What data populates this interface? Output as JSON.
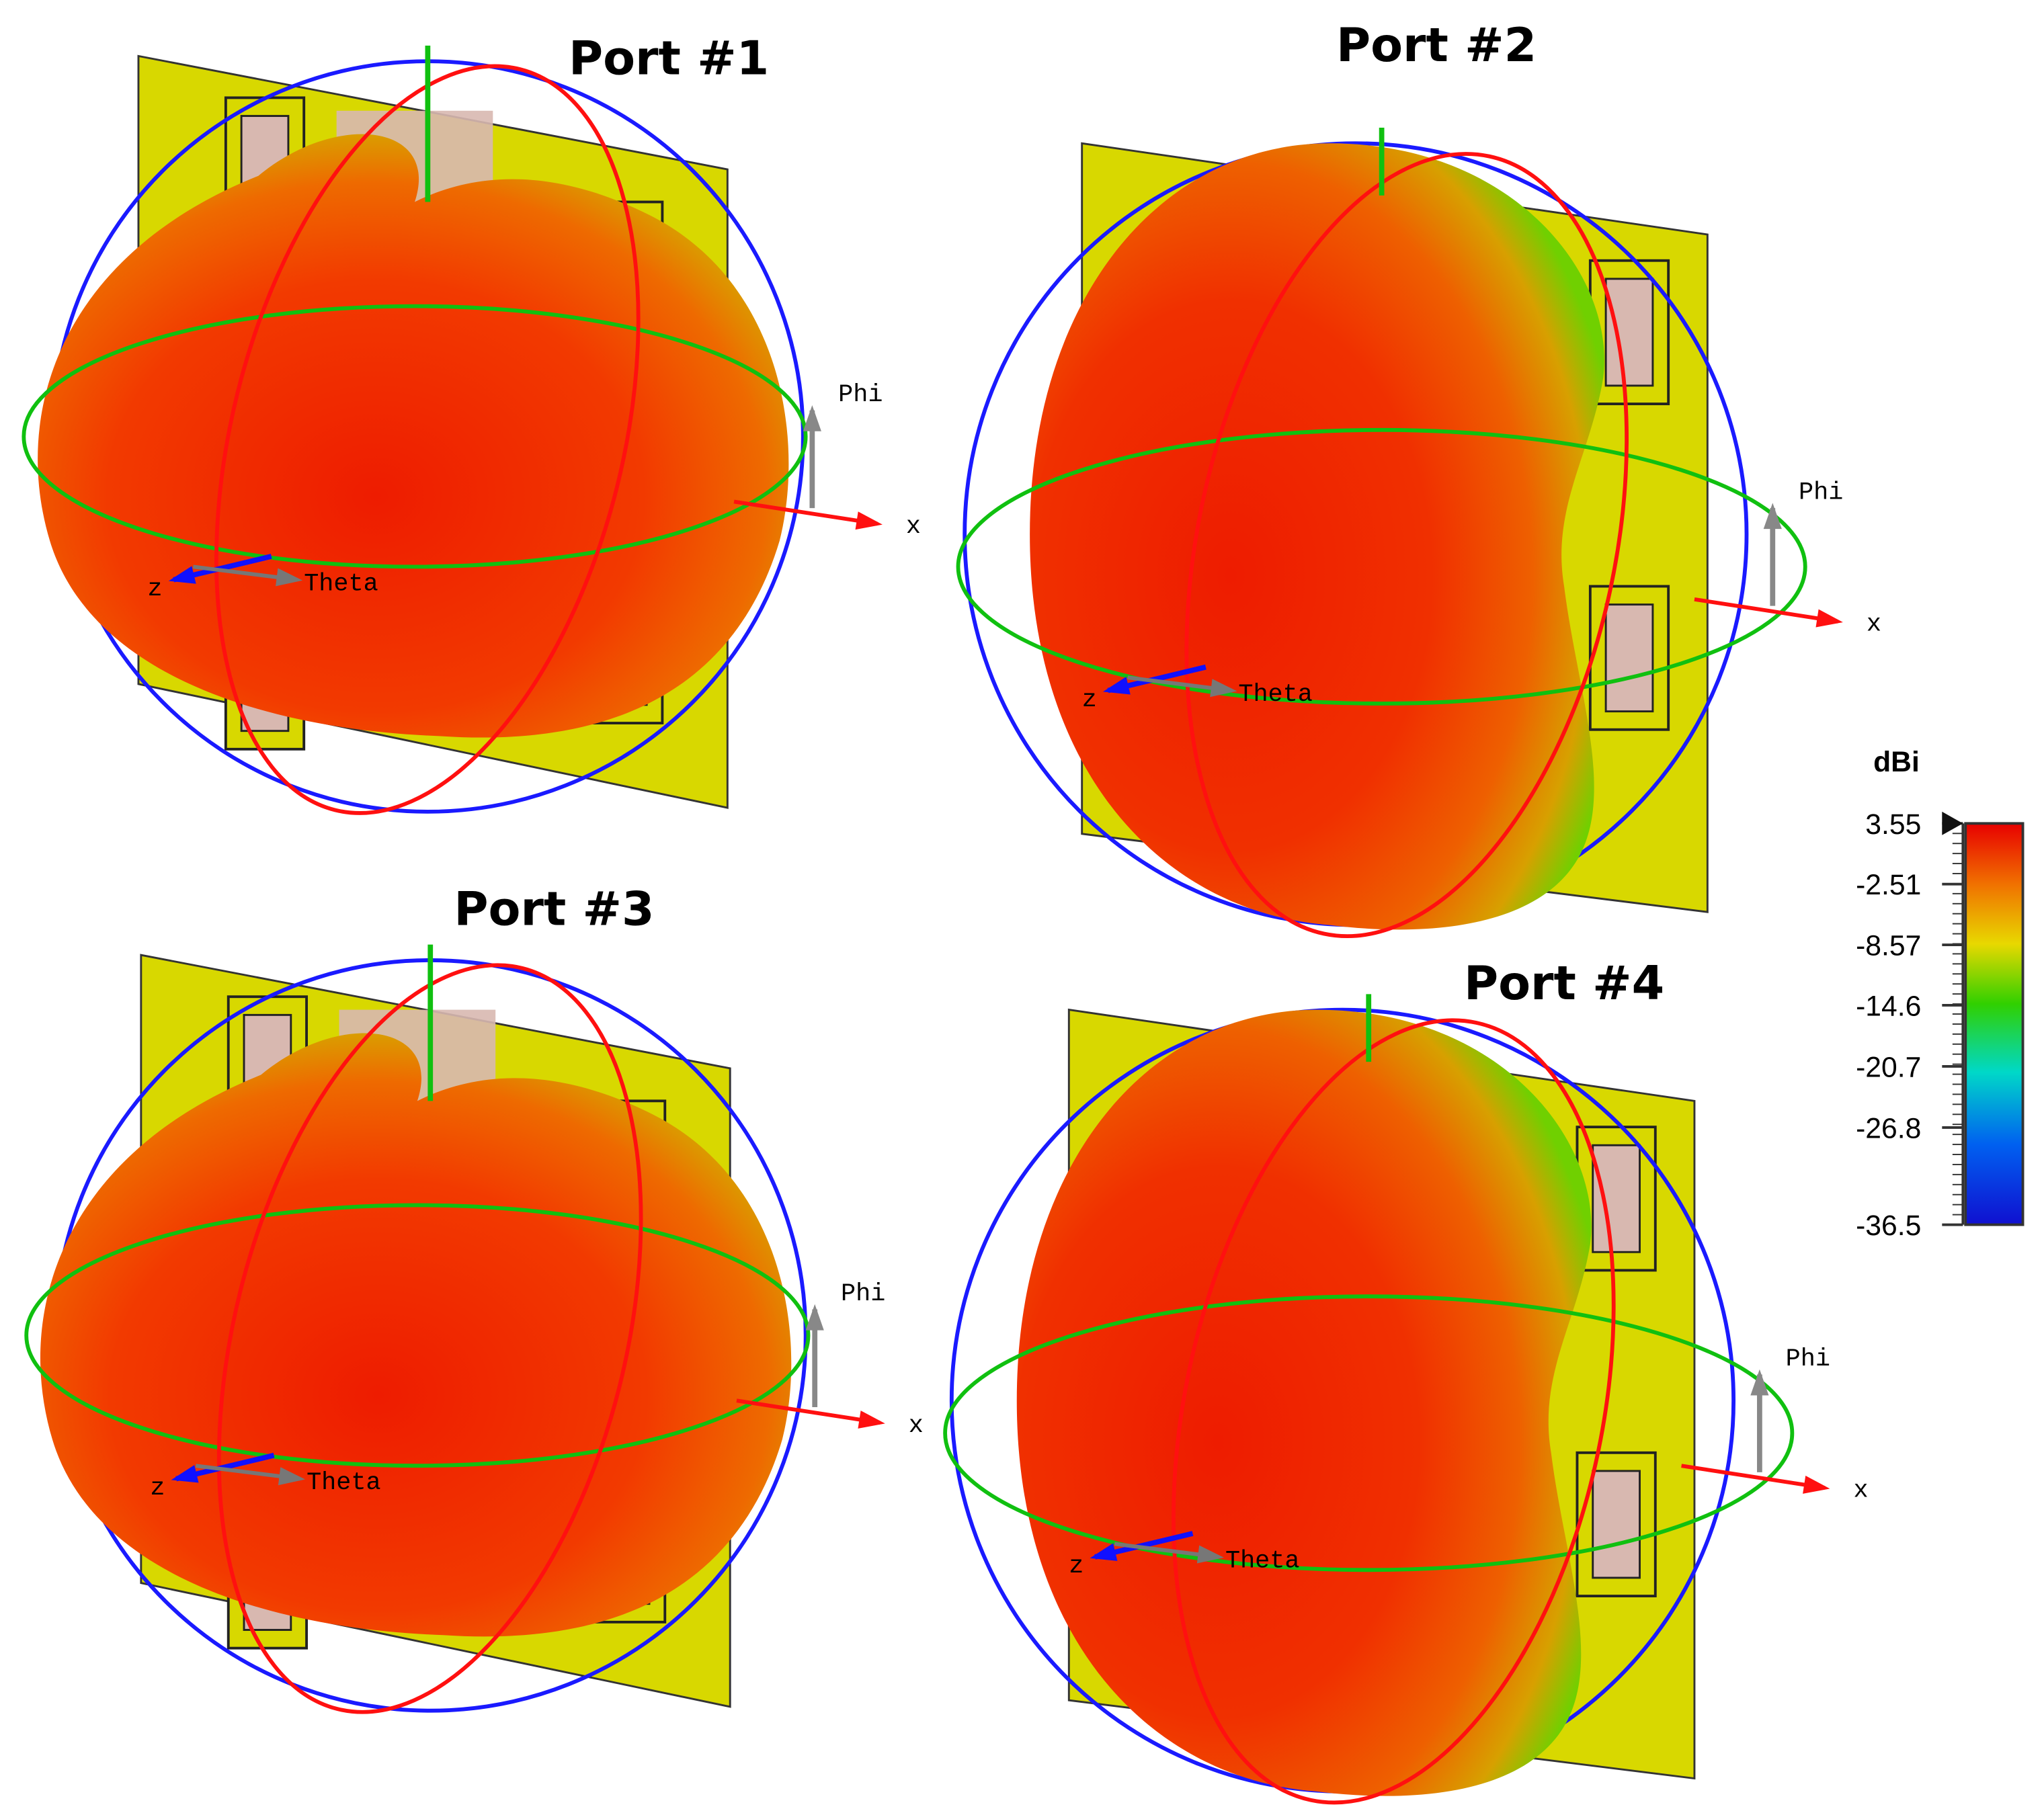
{
  "panels": [
    {
      "title": "Port #1",
      "labels": {
        "phi": "Phi",
        "x": "x",
        "z": "z",
        "theta": "Theta"
      }
    },
    {
      "title": "Port #2",
      "labels": {
        "phi": "Phi",
        "x": "x",
        "z": "z",
        "theta": "Theta"
      }
    },
    {
      "title": "Port #3",
      "labels": {
        "phi": "Phi",
        "x": "x",
        "z": "z",
        "theta": "Theta"
      }
    },
    {
      "title": "Port #4",
      "labels": {
        "phi": "Phi",
        "x": "x",
        "z": "z",
        "theta": "Theta"
      }
    }
  ],
  "colorbar": {
    "unit": "dBi",
    "ticks": [
      3.55,
      -2.51,
      -8.57,
      -14.6,
      -20.7,
      -26.8,
      -36.5
    ]
  }
}
